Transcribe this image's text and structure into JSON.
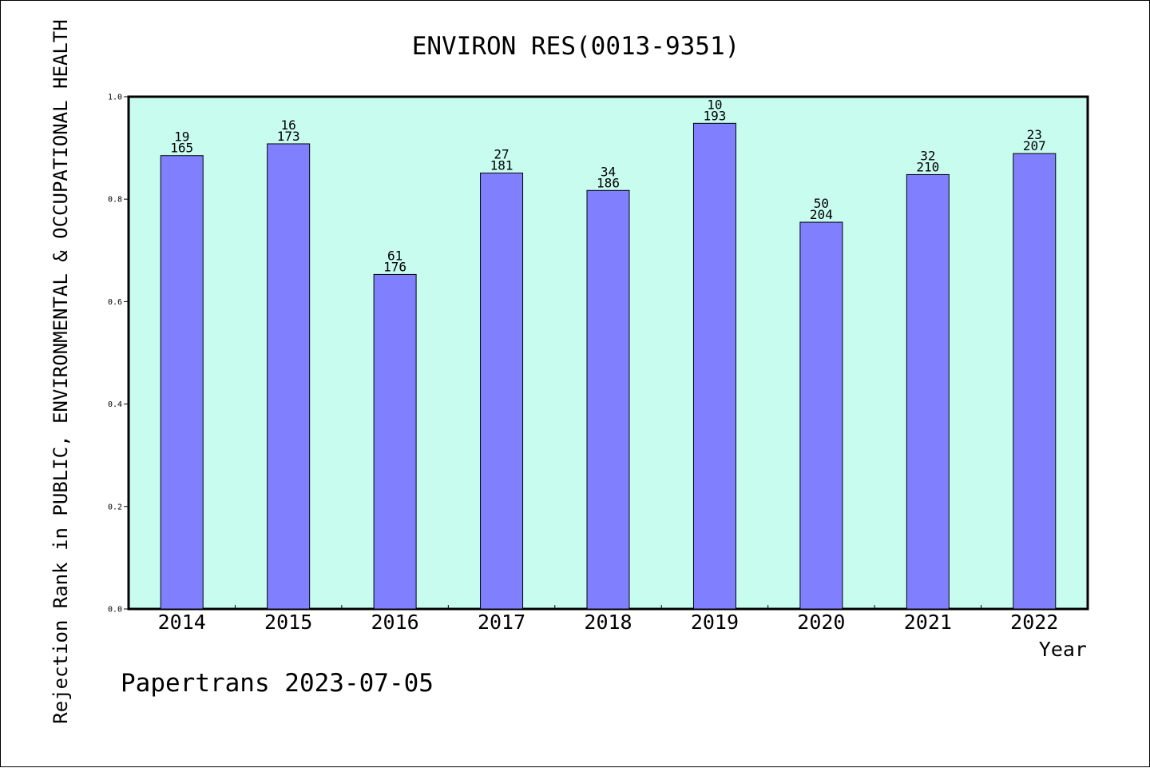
{
  "footer_text": "Papertrans 2023-07-05",
  "chart_data": {
    "type": "bar",
    "title": "ENVIRON RES(0013-9351)",
    "xlabel": "Year",
    "ylabel": "Rejection Rank in PUBLIC, ENVIRONMENTAL & OCCUPATIONAL HEALTH",
    "ylim": [
      0,
      1.0
    ],
    "yticks": [
      "0.0",
      "0.2",
      "0.4",
      "0.6",
      "0.8",
      "1.0"
    ],
    "grid": false,
    "legend": "none",
    "categories": [
      "2014",
      "2015",
      "2016",
      "2017",
      "2018",
      "2019",
      "2020",
      "2021",
      "2022"
    ],
    "values": [
      0.885,
      0.908,
      0.653,
      0.851,
      0.817,
      0.948,
      0.755,
      0.848,
      0.889
    ],
    "rank": [
      "19",
      "16",
      "61",
      "27",
      "34",
      "10",
      "50",
      "32",
      "23"
    ],
    "total": [
      "165",
      "173",
      "176",
      "181",
      "186",
      "193",
      "204",
      "210",
      "207"
    ],
    "colors": {
      "bar_fill": "#8080ff",
      "bar_stroke": "#000000",
      "plot_background": "#c8fcee",
      "axis": "#000000"
    }
  }
}
